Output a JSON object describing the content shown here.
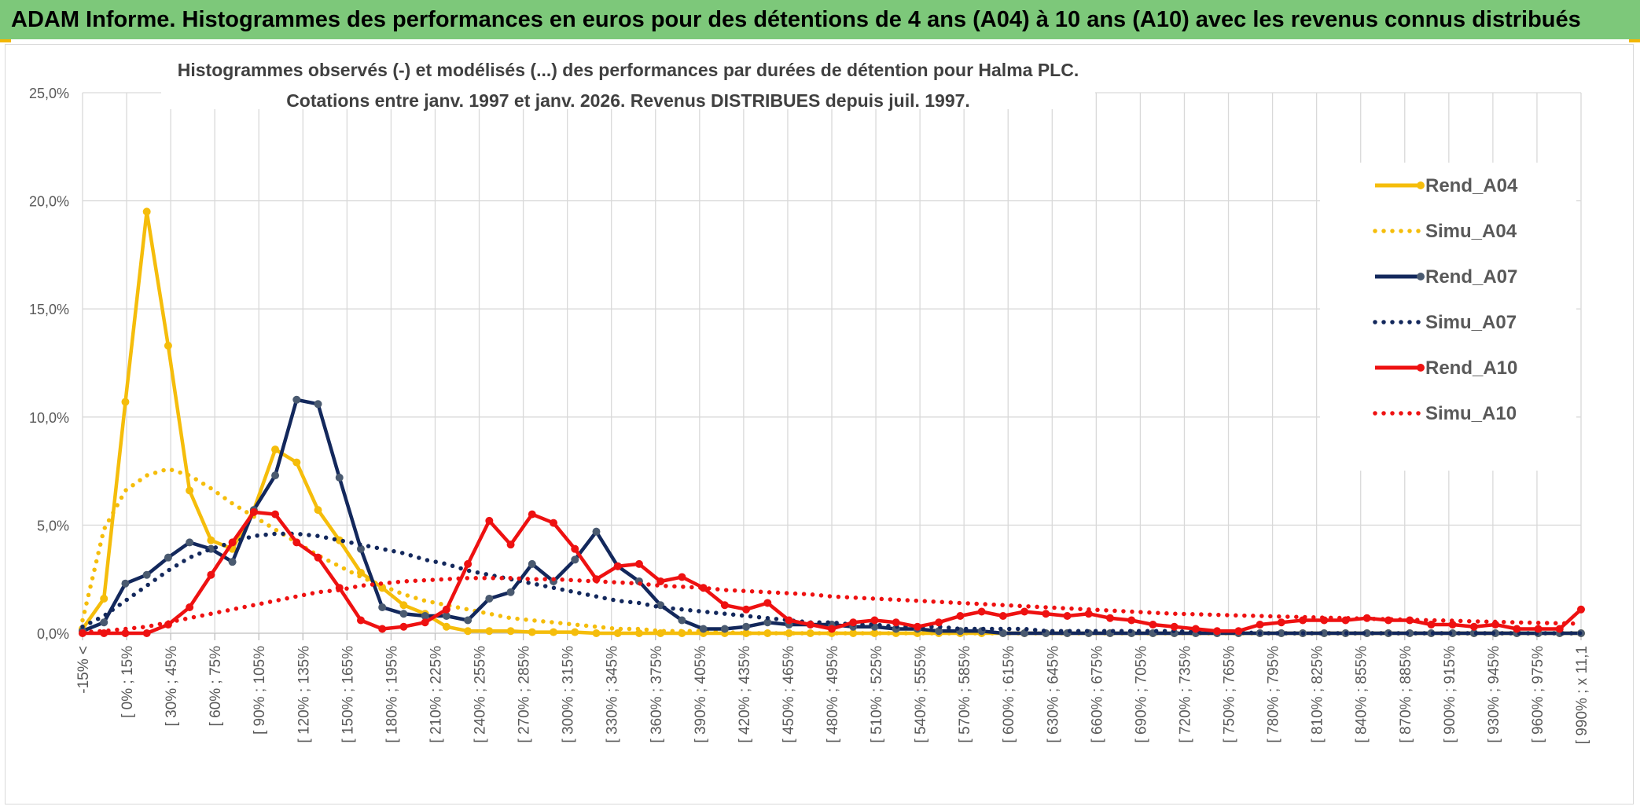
{
  "banner": {
    "title": "ADAM Informe. Histogrammes des performances en euros pour des détentions de 4 ans (A04) à 10 ans (A10) avec les revenus connus distribués"
  },
  "chart_data": {
    "type": "line",
    "title": "Histogrammes observés (-) et modélisés (...) des performances par durées de détention pour Halma PLC.",
    "subtitle": "Cotations entre janv. 1997 et janv. 2026. Revenus DISTRIBUES depuis juil. 1997.",
    "xlabel": "",
    "ylabel": "",
    "ylim": [
      0,
      25
    ],
    "yticks": [
      "0,0%",
      "5,0%",
      "10,0%",
      "15,0%",
      "20,0%",
      "25,0%"
    ],
    "grid": true,
    "legend_position": "right",
    "x_labels": [
      "-15% <",
      "[ 0% ; 15%",
      "[ 30% ; 45%",
      "[ 60% ; 75%",
      "[ 90% ; 105%",
      "[ 120% ; 135%",
      "[ 150% ; 165%",
      "[ 180% ; 195%",
      "[ 210% ; 225%",
      "[ 240% ; 255%",
      "[ 270% ; 285%",
      "[ 300% ; 315%",
      "[ 330% ; 345%",
      "[ 360% ; 375%",
      "[ 390% ; 405%",
      "[ 420% ; 435%",
      "[ 450% ; 465%",
      "[ 480% ; 495%",
      "[ 510% ; 525%",
      "[ 540% ; 555%",
      "[ 570% ; 585%",
      "[ 600% ; 615%",
      "[ 630% ; 645%",
      "[ 660% ; 675%",
      "[ 690% ; 705%",
      "[ 720% ; 735%",
      "[ 750% ; 765%",
      "[ 780% ; 795%",
      "[ 810% ; 825%",
      "[ 840% ; 855%",
      "[ 870% ; 885%",
      "[ 900% ; 915%",
      "[ 930% ; 945%",
      "[ 960% ; 975%",
      "[ 990% ; x 11,1"
    ],
    "series": [
      {
        "name": "Rend_A04",
        "style": "solid",
        "color": "#f5bd0b",
        "values": [
          0.2,
          1.6,
          10.7,
          19.5,
          13.3,
          6.6,
          4.3,
          3.9,
          5.7,
          8.5,
          7.9,
          5.7,
          4.3,
          2.8,
          2.1,
          1.3,
          0.9,
          0.3,
          0.1,
          0.1,
          0.1,
          0.05,
          0.05,
          0.05,
          0,
          0,
          0,
          0,
          0,
          0,
          0,
          0,
          0,
          0,
          0,
          0,
          0,
          0,
          0,
          0,
          0,
          0,
          0,
          0,
          0,
          0,
          0,
          0,
          0,
          0,
          0,
          0,
          0,
          0,
          0,
          0,
          0,
          0,
          0,
          0,
          0,
          0,
          0,
          0,
          0,
          0,
          0,
          0,
          0,
          0,
          0
        ]
      },
      {
        "name": "Simu_A04",
        "style": "dotted",
        "color": "#f5bd0b",
        "values": [
          0.6,
          4.8,
          6.6,
          7.3,
          7.6,
          7.3,
          6.7,
          6,
          5.4,
          4.8,
          4.2,
          3.6,
          3.1,
          2.6,
          2.2,
          1.8,
          1.5,
          1.3,
          1.1,
          0.9,
          0.7,
          0.6,
          0.5,
          0.4,
          0.3,
          0.2,
          0.2,
          0.1,
          0.1,
          0.1,
          0.05,
          0,
          0,
          0,
          0,
          0,
          0,
          0,
          0,
          0,
          0,
          0,
          0,
          0,
          0,
          0,
          0,
          0,
          0,
          0,
          0,
          0,
          0,
          0,
          0,
          0,
          0,
          0,
          0,
          0,
          0,
          0,
          0,
          0,
          0,
          0,
          0,
          0,
          0,
          0,
          0
        ]
      },
      {
        "name": "Rend_A07",
        "style": "solid",
        "color": "#13285c",
        "values": [
          0.1,
          0.5,
          2.3,
          2.7,
          3.5,
          4.2,
          3.9,
          3.3,
          5.7,
          7.3,
          10.8,
          10.6,
          7.2,
          3.9,
          1.2,
          0.9,
          0.8,
          0.8,
          0.6,
          1.6,
          1.9,
          3.2,
          2.4,
          3.4,
          4.7,
          3.1,
          2.4,
          1.3,
          0.6,
          0.2,
          0.2,
          0.3,
          0.5,
          0.4,
          0.4,
          0.4,
          0.3,
          0.3,
          0.2,
          0.2,
          0.1,
          0.1,
          0.1,
          0,
          0,
          0,
          0,
          0,
          0,
          0,
          0,
          0,
          0,
          0,
          0,
          0,
          0,
          0,
          0,
          0,
          0,
          0,
          0,
          0,
          0,
          0,
          0,
          0,
          0,
          0,
          0
        ]
      },
      {
        "name": "Simu_A07",
        "style": "dotted",
        "color": "#13285c",
        "values": [
          0.3,
          0.8,
          1.5,
          2.2,
          2.9,
          3.5,
          3.9,
          4.2,
          4.5,
          4.6,
          4.6,
          4.5,
          4.3,
          4.1,
          3.9,
          3.7,
          3.4,
          3.2,
          2.9,
          2.7,
          2.5,
          2.3,
          2.1,
          1.9,
          1.7,
          1.5,
          1.4,
          1.2,
          1.1,
          1,
          0.9,
          0.8,
          0.7,
          0.6,
          0.5,
          0.5,
          0.4,
          0.4,
          0.3,
          0.3,
          0.3,
          0.2,
          0.2,
          0.2,
          0.2,
          0.1,
          0.1,
          0.1,
          0.1,
          0.1,
          0.1,
          0.1,
          0.05,
          0.05,
          0.05,
          0,
          0,
          0,
          0,
          0,
          0,
          0,
          0,
          0,
          0,
          0,
          0,
          0,
          0,
          0,
          0
        ]
      },
      {
        "name": "Rend_A10",
        "style": "solid",
        "color": "#ee1111",
        "values": [
          0,
          0,
          0,
          0,
          0.4,
          1.2,
          2.7,
          4.2,
          5.6,
          5.5,
          4.2,
          3.5,
          2.1,
          0.6,
          0.2,
          0.3,
          0.5,
          1.1,
          3.2,
          5.2,
          4.1,
          5.5,
          5.1,
          3.9,
          2.5,
          3.1,
          3.2,
          2.4,
          2.6,
          2.1,
          1.3,
          1.1,
          1.4,
          0.6,
          0.4,
          0.2,
          0.5,
          0.6,
          0.5,
          0.3,
          0.5,
          0.8,
          1,
          0.8,
          1,
          0.9,
          0.8,
          0.9,
          0.7,
          0.6,
          0.4,
          0.3,
          0.2,
          0.1,
          0.1,
          0.4,
          0.5,
          0.6,
          0.6,
          0.6,
          0.7,
          0.6,
          0.6,
          0.4,
          0.4,
          0.3,
          0.4,
          0.2,
          0.2,
          0.2,
          1.1
        ]
      },
      {
        "name": "Simu_A10",
        "style": "dotted",
        "color": "#ee1111",
        "values": [
          0.05,
          0.1,
          0.2,
          0.3,
          0.5,
          0.7,
          0.9,
          1.1,
          1.3,
          1.5,
          1.7,
          1.9,
          2,
          2.2,
          2.3,
          2.4,
          2.45,
          2.5,
          2.55,
          2.55,
          2.55,
          2.5,
          2.5,
          2.45,
          2.4,
          2.35,
          2.3,
          2.2,
          2.15,
          2.1,
          2,
          1.95,
          1.9,
          1.85,
          1.8,
          1.7,
          1.65,
          1.6,
          1.55,
          1.5,
          1.45,
          1.4,
          1.35,
          1.3,
          1.25,
          1.2,
          1.15,
          1.1,
          1.05,
          1,
          0.95,
          0.9,
          0.88,
          0.85,
          0.82,
          0.8,
          0.77,
          0.75,
          0.72,
          0.7,
          0.67,
          0.65,
          0.62,
          0.6,
          0.58,
          0.55,
          0.53,
          0.5,
          0.48,
          0.46,
          0.44
        ]
      }
    ]
  }
}
